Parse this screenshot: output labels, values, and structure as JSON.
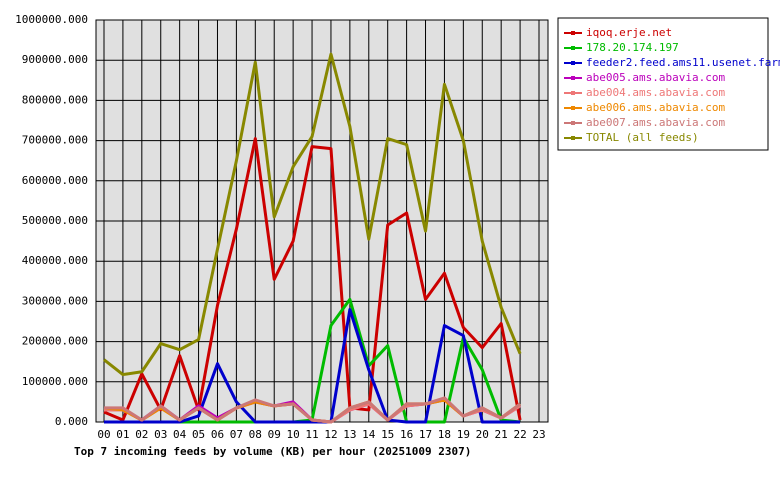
{
  "chart_data": {
    "type": "line",
    "title": "Top 7 incoming feeds by volume (KB) per hour (20251009 2307)",
    "categories": [
      "00",
      "01",
      "02",
      "03",
      "04",
      "05",
      "06",
      "07",
      "08",
      "09",
      "10",
      "11",
      "12",
      "13",
      "14",
      "15",
      "16",
      "17",
      "18",
      "19",
      "20",
      "21",
      "22",
      "23"
    ],
    "ylim": [
      0,
      1000000
    ],
    "yticks": [
      {
        "value": 0,
        "label": "0.000"
      },
      {
        "value": 100000,
        "label": "100000.000"
      },
      {
        "value": 200000,
        "label": "200000.000"
      },
      {
        "value": 300000,
        "label": "300000.000"
      },
      {
        "value": 400000,
        "label": "400000.000"
      },
      {
        "value": 500000,
        "label": "500000.000"
      },
      {
        "value": 600000,
        "label": "600000.000"
      },
      {
        "value": 700000,
        "label": "700000.000"
      },
      {
        "value": 800000,
        "label": "800000.000"
      },
      {
        "value": 900000,
        "label": "900000.000"
      },
      {
        "value": 1000000,
        "label": "1000000.000"
      }
    ],
    "grid": true,
    "legend": "right",
    "series": [
      {
        "name": "iqoq.erje.net",
        "color": "#cc0000",
        "values": [
          25000,
          5000,
          120000,
          30000,
          165000,
          30000,
          290000,
          480000,
          705000,
          355000,
          450000,
          685000,
          680000,
          35000,
          30000,
          490000,
          520000,
          305000,
          370000,
          235000,
          185000,
          245000,
          5000,
          null
        ]
      },
      {
        "name": "178.20.174.197",
        "color": "#00bb00",
        "values": [
          0,
          0,
          0,
          0,
          0,
          0,
          0,
          0,
          0,
          0,
          0,
          5000,
          240000,
          305000,
          140000,
          190000,
          0,
          0,
          0,
          210000,
          130000,
          5000,
          0,
          null
        ]
      },
      {
        "name": "feeder2.feed.ams11.usenet.farm",
        "color": "#0000cc",
        "values": [
          0,
          0,
          0,
          0,
          0,
          15000,
          145000,
          50000,
          0,
          0,
          0,
          0,
          0,
          280000,
          130000,
          5000,
          0,
          0,
          240000,
          215000,
          0,
          0,
          0,
          null
        ]
      },
      {
        "name": "abe005.ams.abavia.com",
        "color": "#bb00bb",
        "values": [
          30000,
          30000,
          5000,
          40000,
          5000,
          40000,
          10000,
          35000,
          50000,
          40000,
          50000,
          5000,
          0,
          30000,
          45000,
          5000,
          40000,
          45000,
          55000,
          15000,
          30000,
          10000,
          40000,
          null
        ]
      },
      {
        "name": "abe004.ams.abavia.com",
        "color": "#ee7777",
        "values": [
          30000,
          30000,
          5000,
          35000,
          5000,
          35000,
          5000,
          35000,
          50000,
          40000,
          45000,
          5000,
          0,
          30000,
          45000,
          5000,
          40000,
          45000,
          55000,
          15000,
          30000,
          10000,
          40000,
          null
        ]
      },
      {
        "name": "abe006.ams.abavia.com",
        "color": "#ee8800",
        "values": [
          35000,
          30000,
          5000,
          35000,
          5000,
          35000,
          5000,
          35000,
          50000,
          40000,
          45000,
          5000,
          0,
          35000,
          50000,
          5000,
          45000,
          45000,
          55000,
          15000,
          35000,
          10000,
          45000,
          null
        ]
      },
      {
        "name": "abe007.ams.abavia.com",
        "color": "#cc7777",
        "values": [
          35000,
          35000,
          5000,
          40000,
          5000,
          35000,
          5000,
          35000,
          55000,
          40000,
          45000,
          5000,
          0,
          35000,
          50000,
          5000,
          45000,
          45000,
          60000,
          15000,
          35000,
          10000,
          45000,
          null
        ]
      },
      {
        "name": "TOTAL (all feeds)",
        "color": "#888800",
        "values": [
          155000,
          118000,
          125000,
          195000,
          180000,
          205000,
          430000,
          650000,
          895000,
          510000,
          635000,
          710000,
          915000,
          735000,
          455000,
          705000,
          690000,
          475000,
          840000,
          700000,
          450000,
          285000,
          170000,
          null
        ]
      }
    ]
  }
}
